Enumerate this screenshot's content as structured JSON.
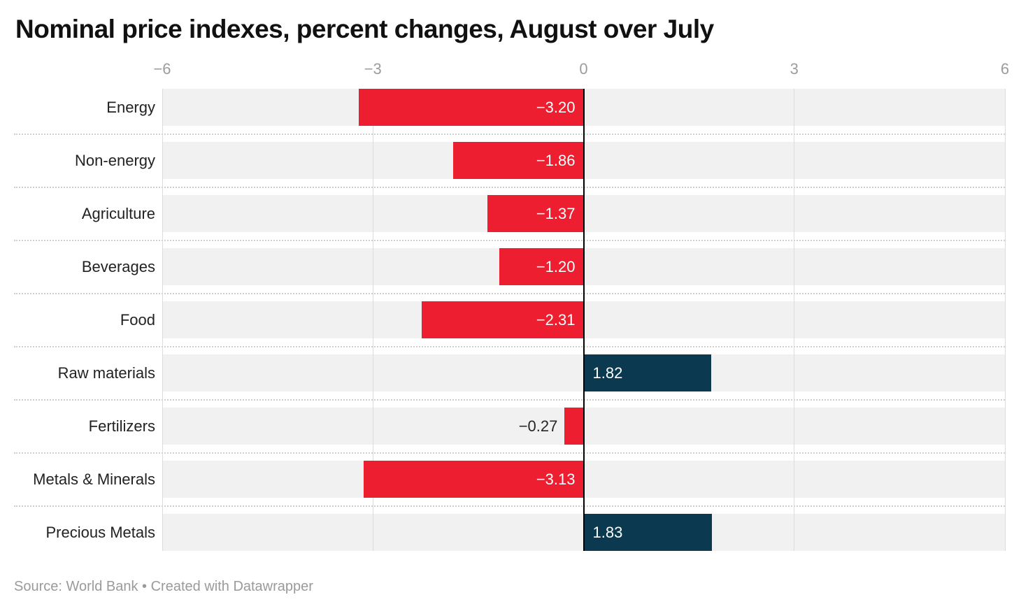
{
  "title": "Nominal price indexes, percent changes, August over July",
  "footer": {
    "text": "Source: World Bank • Created with Datawrapper"
  },
  "chart_data": {
    "type": "bar",
    "orientation": "horizontal",
    "title": "Nominal price indexes, percent changes, August over July",
    "xlabel": "",
    "ylabel": "",
    "xlim": [
      -6,
      6
    ],
    "xticks": [
      -6,
      -3,
      0,
      3,
      6
    ],
    "xtick_labels": [
      "−6",
      "−3",
      "0",
      "3",
      "6"
    ],
    "grid": "vertical",
    "zero_line": true,
    "legend": "none",
    "categories": [
      "Energy",
      "Non-energy",
      "Agriculture",
      "Beverages",
      "Food",
      "Raw materials",
      "Fertilizers",
      "Metals & Minerals",
      "Precious Metals"
    ],
    "values": [
      -3.2,
      -1.86,
      -1.37,
      -1.2,
      -2.31,
      1.82,
      -0.27,
      -3.13,
      1.83
    ],
    "value_labels": [
      "−3.20",
      "−1.86",
      "−1.37",
      "−1.20",
      "−2.31",
      "1.82",
      "−0.27",
      "−3.13",
      "1.83"
    ],
    "colors": {
      "negative": "#ec1e30",
      "positive": "#0a3950",
      "row_background": "#f1f1f1",
      "gridline": "#dcdcdc",
      "zero_line": "#000000",
      "tick_label": "#9c9c9c",
      "category_label": "#222222",
      "value_label_inside": "#ffffff",
      "value_label_outside": "#262626"
    },
    "source": "World Bank",
    "credit": "Created with Datawrapper"
  }
}
